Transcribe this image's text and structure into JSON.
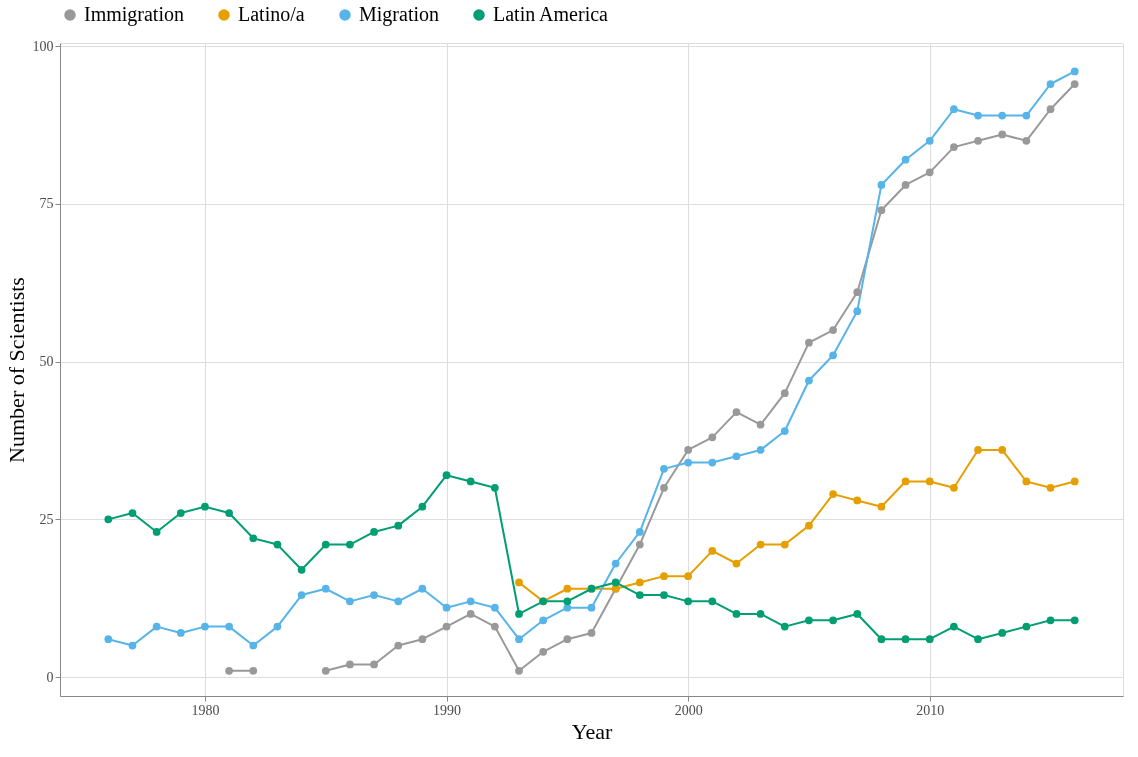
{
  "chart_data": {
    "type": "line",
    "xlabel": "Year",
    "ylabel": "Number of Scientists",
    "x": [
      1976,
      1977,
      1978,
      1979,
      1980,
      1981,
      1982,
      1983,
      1984,
      1985,
      1986,
      1987,
      1988,
      1989,
      1990,
      1991,
      1992,
      1993,
      1994,
      1995,
      1996,
      1997,
      1998,
      1999,
      2000,
      2001,
      2002,
      2003,
      2004,
      2005,
      2006,
      2007,
      2008,
      2009,
      2010,
      2011,
      2012,
      2013,
      2014,
      2015,
      2016
    ],
    "series": [
      {
        "name": "Immigration",
        "color": "#999999",
        "values": [
          null,
          null,
          null,
          null,
          null,
          1,
          1,
          null,
          null,
          1,
          2,
          2,
          5,
          6,
          8,
          10,
          8,
          1,
          4,
          6,
          7,
          14,
          21,
          30,
          36,
          38,
          42,
          40,
          45,
          53,
          55,
          61,
          74,
          78,
          80,
          84,
          85,
          86,
          85,
          90,
          94
        ]
      },
      {
        "name": "Latino/a",
        "color": "#e69f00",
        "values": [
          null,
          null,
          null,
          null,
          null,
          null,
          null,
          null,
          null,
          null,
          null,
          null,
          null,
          null,
          null,
          null,
          null,
          15,
          12,
          14,
          14,
          14,
          15,
          16,
          16,
          20,
          18,
          21,
          21,
          24,
          29,
          28,
          27,
          31,
          31,
          30,
          36,
          36,
          31,
          30,
          31
        ]
      },
      {
        "name": "Migration",
        "color": "#56b4e9",
        "values": [
          6,
          5,
          8,
          7,
          8,
          8,
          5,
          8,
          13,
          14,
          12,
          13,
          12,
          14,
          11,
          12,
          11,
          6,
          9,
          11,
          11,
          18,
          23,
          33,
          34,
          34,
          35,
          36,
          39,
          47,
          51,
          58,
          78,
          82,
          85,
          90,
          89,
          89,
          89,
          94,
          96
        ]
      },
      {
        "name": "Latin America",
        "color": "#009e73",
        "values": [
          25,
          26,
          23,
          26,
          27,
          26,
          22,
          21,
          17,
          21,
          21,
          23,
          24,
          27,
          32,
          31,
          30,
          10,
          12,
          12,
          14,
          15,
          13,
          13,
          12,
          12,
          10,
          10,
          8,
          9,
          9,
          10,
          6,
          6,
          6,
          8,
          6,
          7,
          8,
          9,
          9
        ]
      }
    ],
    "xlim": [
      1974,
      2018
    ],
    "xticks": [
      1980,
      1990,
      2000,
      2010
    ],
    "ylim": [
      -3,
      100.5
    ],
    "yticks": [
      0,
      25,
      50,
      75,
      100
    ],
    "grid": true,
    "legend": "top",
    "marker": "circle",
    "line_style": "solid"
  }
}
